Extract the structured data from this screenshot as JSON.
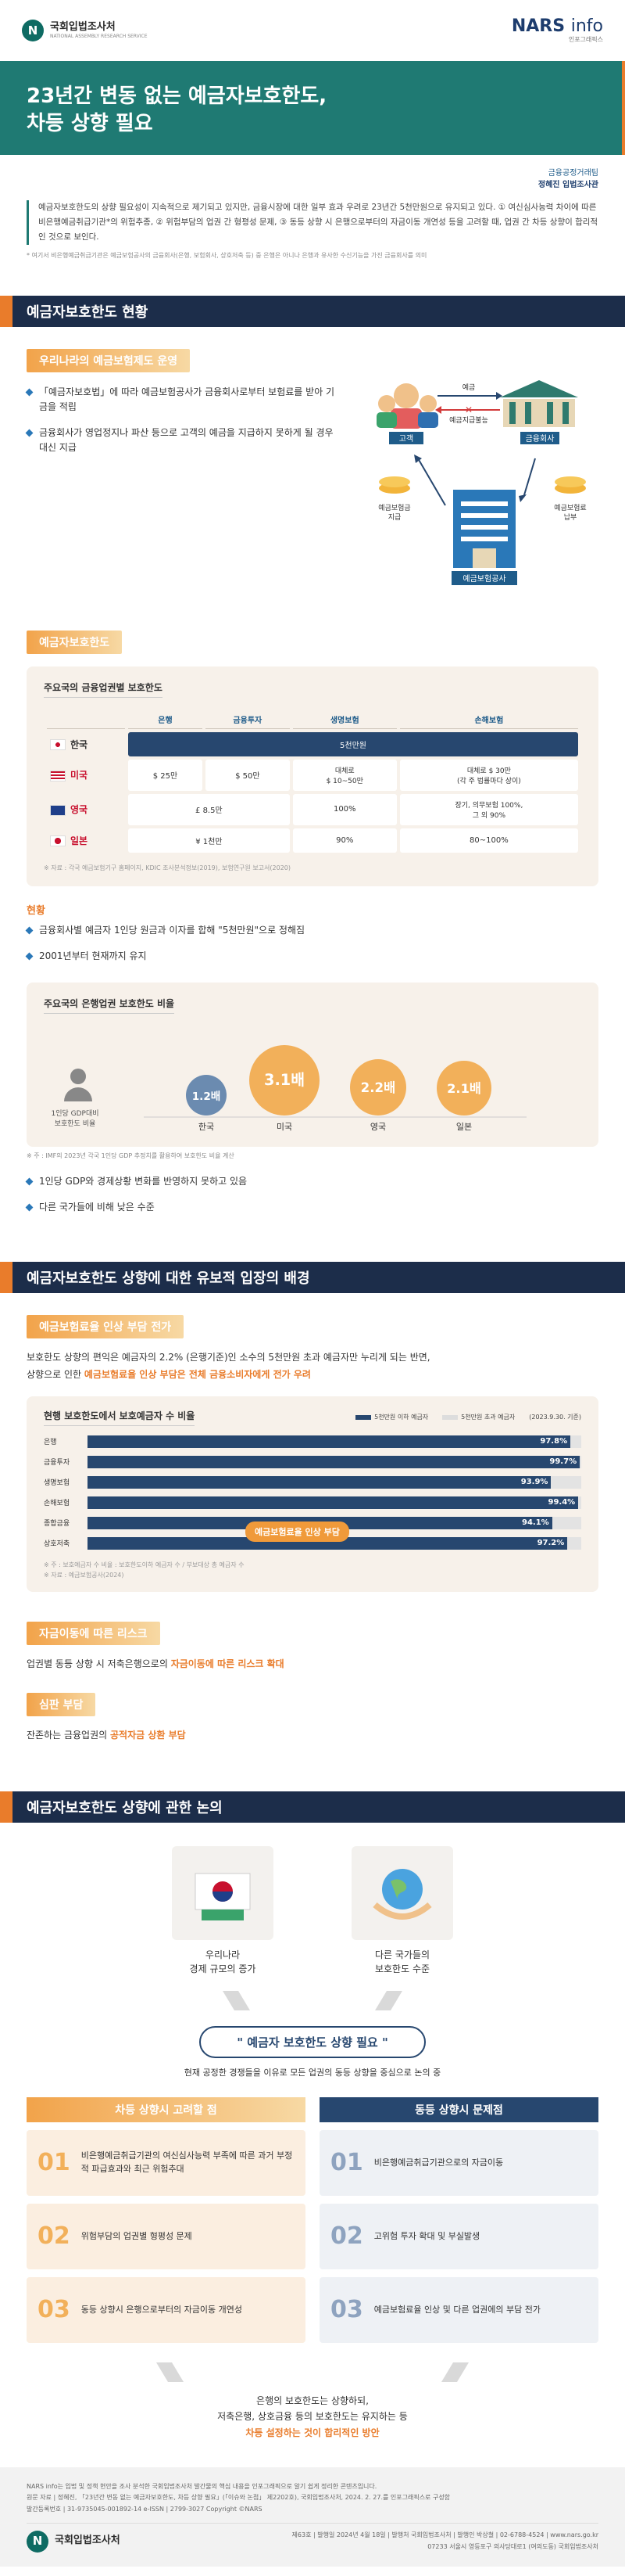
{
  "header": {
    "org_name": "국회입법조사처",
    "org_sub": "NATIONAL ASSEMBLY RESEARCH SERVICE",
    "nars_brand": "NARS",
    "nars_word": "info",
    "nars_sub": "인포그래픽스",
    "title_line1": "23년간 변동 없는 예금자보호한도,",
    "title_line2": "차등 상향 필요",
    "author_team": "금융공정거래팀",
    "author_name": "정혜진 입법조사관"
  },
  "intro": {
    "text": "예금자보호한도의 상향 필요성이 지속적으로 제기되고 있지만, 금융시장에 대한 일부 효과 우려로 23년간 5천만원으로 유지되고 있다. ① 여신심사능력 차이에 따른 비은행예금취급기관*의 위험추종, ② 위험부담의 업권 간 형평성 문제, ③ 동등 상향 시 은행으로부터의 자금이동 개연성 등을 고려할 때, 업권 간 차등 상향이 합리적인 것으로 보인다.",
    "note": "* 여기서 비은행예금취급기관은 예금보험공사의 금융회사(은행, 보험회사, 상호저축 등) 중 은행은 아니나 은행과 유사한 수신기능을 가진 금융회사를 의미"
  },
  "section1": {
    "title": "예금자보호한도 현황",
    "sub1": "우리나라의 예금보험제도 운영",
    "bullets": [
      "「예금자보호법」에 따라 예금보험공사가 금융회사로부터 보험료를 받아 기금을 적립",
      "금융회사가 영업정지나 파산 등으로 고객의 예금을 지급하지 못하게 될 경우 대신 지급"
    ],
    "diagram": {
      "customer": "고객",
      "fin_company": "금융회사",
      "kdic": "예금보험공사",
      "deposit": "예금",
      "no_pay": "예금지급불능",
      "ins_pay": "예금보험금\n지급",
      "ins_fee": "예금보험료\n납부"
    },
    "sub2": "예금자보호한도",
    "table": {
      "title": "주요국의 금융업권별 보호한도",
      "headers": [
        "은행",
        "금융투자",
        "생명보험",
        "손해보험"
      ],
      "rows": [
        {
          "country": "한국",
          "cells": [
            "5천만원"
          ],
          "span": true
        },
        {
          "country": "미국",
          "cells": [
            "$ 25만",
            "$ 50만",
            "대체로\n$ 10~50만",
            "대체로 $ 30만\n(각 주 법률마다 상이)"
          ],
          "span": false
        },
        {
          "country": "영국",
          "cells": [
            "£ 8.5만",
            "",
            "100%",
            "장기, 의무보험 100%,\n그 외 90%"
          ],
          "span": false
        },
        {
          "country": "일본",
          "cells": [
            "¥ 1천만",
            "",
            "90%",
            "80~100%"
          ],
          "span": false
        }
      ],
      "source": "※ 자료 : 각국 예금보험기구 홈페이지, KDIC 조사분석정보(2019), 보험연구원 보고서(2020)"
    },
    "status_title": "현황",
    "status_bullets": [
      "금융회사별 예금자 1인당 원금과 이자를 합해 \"5천만원\"으로 정해짐",
      "2001년부터 현재까지 유지"
    ],
    "bubble_card": {
      "title": "주요국의 은행업권 보호한도 비율",
      "axis_label": "1인당 GDP대비\n보호한도 비율",
      "note": "※ 주 : IMF의 2023년 각국 1인당 GDP 추정치를 활용하여 보호한도 비율 계산"
    },
    "bubble_bullets": [
      "1인당 GDP와 경제상황 변화를 반영하지 못하고 있음",
      "다른 국가들에 비해 낮은 수준"
    ]
  },
  "chart_data": {
    "type": "bubble",
    "title": "주요국의 은행업권 보호한도 비율",
    "categories": [
      "한국",
      "미국",
      "영국",
      "일본"
    ],
    "values": [
      1.2,
      3.1,
      2.2,
      2.1
    ],
    "value_labels": [
      "1.2배",
      "3.1배",
      "2.2배",
      "2.1배"
    ]
  },
  "chart_data_2": {
    "type": "bar",
    "title": "현행 보호한도에서 보호예금자 수 비율",
    "categories": [
      "은행",
      "금융투자",
      "생명보험",
      "손해보험",
      "종합금융",
      "상호저축"
    ],
    "values": [
      97.8,
      99.7,
      93.9,
      99.4,
      94.1,
      97.2
    ],
    "value_labels": [
      "97.8%",
      "99.7%",
      "93.9%",
      "99.4%",
      "94.1%",
      "97.2%"
    ],
    "legend": [
      "5천만원 이하 예금자",
      "5천만원 초과 예금자"
    ],
    "date": "(2023.9.30. 기준)",
    "note": "※ 주 : 보호예금자 수 비율 : 보호한도이하 예금자 수 / 부보대상 총 예금자 수",
    "source": "※ 자료 : 예금보험공사(2024)",
    "tag": "예금보험료율 인상 부담"
  },
  "section2": {
    "title": "예금자보호한도 상향에 대한 유보적 입장의 배경",
    "sub1": "예금보험료율 인상 부담 전가",
    "para1_a": "보호한도 상향의 편익은 예금자의 2.2% (은행기준)인 소수의 5천만원 초과 예금자만 누리게 되는 반면,",
    "para1_b": "상향으로 인한 ",
    "para1_hl": "예금보험료율 인상 부담은 전체 금융소비자에게 전가 우려",
    "sub2": "자금이동에 따른 리스크",
    "para2_a": "업권별 동등 상향 시 저축은행으로의 ",
    "para2_hl": "자금이동에 따른 리스크 확대",
    "sub3": "심판 부담",
    "para3_a": "잔존하는 금융업권의 ",
    "para3_hl": "공적자금 상환 부담"
  },
  "section3": {
    "title": "예금자보호한도 상향에 관한 논의",
    "left_icon_label": "우리나라\n경제 규모의 증가",
    "right_icon_label": "다른 국가들의\n보호한도 수준",
    "quote": "\" 예금자 보호한도 상향 필요 \"",
    "quote_sub": "현재 공정한 경쟁들을 이유로 모든 업권의 동등 상향을 중심으로 논의 중",
    "left_head": "차등 상향시 고려할 점",
    "right_head": "동등 상향시 문제점",
    "left_items": [
      {
        "num": "01",
        "text": "비은행예금취급기관의 여신심사능력 부족에 따른 과거 부정적 파급효과와 최근 위험추대"
      },
      {
        "num": "02",
        "text": "위험부담의 업권별 형평성 문제"
      },
      {
        "num": "03",
        "text": "동등 상향시 은행으로부터의 자금이동 개연성"
      }
    ],
    "right_items": [
      {
        "num": "01",
        "text": "비은행예금취급기관으로의 자금이동"
      },
      {
        "num": "02",
        "text": "고위험 투자 확대 및 부실발생"
      },
      {
        "num": "03",
        "text": "예금보험료율 인상 및 다른 업권에의 부담 전가"
      }
    ],
    "conclusion_1": "은행의 보호한도는 상향하되,",
    "conclusion_2": "저축은행, 상호금융 등의 보호한도는 유지하는 등",
    "conclusion_hl": "차등 설정하는 것이 합리적인 방안"
  },
  "footer": {
    "line1": "NARS info는 입법 및 정책 현안을 조사 분석한 국회입법조사처 발간물의 핵심 내용을 인포그래픽으로 알기 쉽게 정리한 콘텐츠입니다.",
    "line2": "원문 자료 | 정혜진, 「23년간 변동 없는 예금자보호한도, 차등 상향 필요」(「이슈와 논점」 제2202호), 국회입법조사처, 2024. 2. 27.를 인포그래픽스로 구성함",
    "line3": "발간등록번호 | 31-9735045-001892-14    e-ISSN | 2799-3027    Copyright ©NARS",
    "issue": "제63호 | 발행일 2024년 4월 18일 | 발행처 국회입법조사처 | 발행인 박상철 | 02-6788-4524 | www.nars.go.kr",
    "address": "07233 서울시 영등포구 의사당대로1 (여의도동) 국회입법조사처"
  }
}
